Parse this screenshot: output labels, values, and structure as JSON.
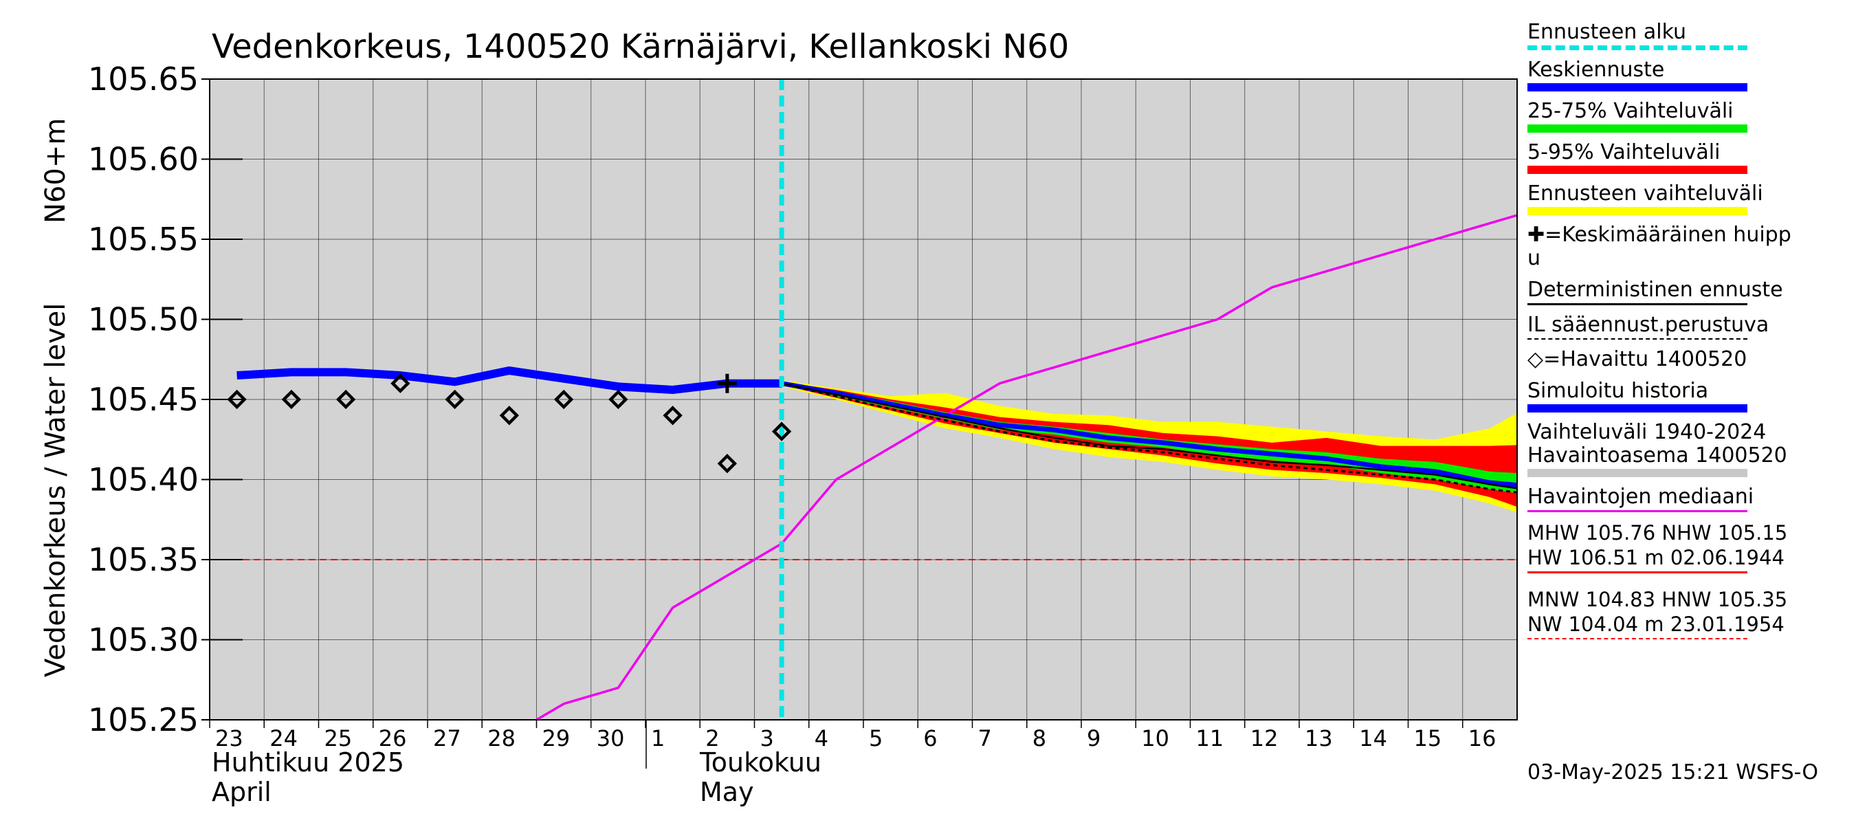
{
  "chart_data": {
    "type": "line",
    "title": "Vedenkorkeus, 1400520 Kärnäjärvi, Kellankoski N60",
    "ylabel_left": "Vedenkorkeus / Water level",
    "ylabel_right": "N60+m",
    "ylim": [
      105.25,
      105.65
    ],
    "y_ticks": [
      "105.25",
      "105.30",
      "105.35",
      "105.40",
      "105.45",
      "105.50",
      "105.55",
      "105.60",
      "105.65"
    ],
    "x_day_labels": [
      "23",
      "24",
      "25",
      "26",
      "27",
      "28",
      "29",
      "30",
      "1",
      "2",
      "3",
      "4",
      "5",
      "6",
      "7",
      "8",
      "9",
      "10",
      "11",
      "12",
      "13",
      "14",
      "15",
      "16"
    ],
    "month_labels": [
      {
        "fi": "Huhtikuu  2025",
        "en": "April"
      },
      {
        "fi": "Toukokuu",
        "en": "May"
      }
    ],
    "forecast_start": "2025-05-03",
    "median_level": 105.35,
    "series": [
      {
        "name": "Simuloitu historia",
        "color": "#0000ff",
        "x": [
          "2025-04-23",
          "2025-04-24",
          "2025-04-25",
          "2025-04-26",
          "2025-04-27",
          "2025-04-28",
          "2025-04-29",
          "2025-04-30",
          "2025-05-01",
          "2025-05-02",
          "2025-05-03"
        ],
        "y": [
          105.465,
          105.467,
          105.467,
          105.465,
          105.461,
          105.468,
          105.463,
          105.458,
          105.456,
          105.46,
          105.46
        ]
      },
      {
        "name": "Havaittu 1400520",
        "color": "#000000",
        "x": [
          "2025-04-23",
          "2025-04-24",
          "2025-04-25",
          "2025-04-26",
          "2025-04-27",
          "2025-04-28",
          "2025-04-29",
          "2025-04-30",
          "2025-05-01",
          "2025-05-02",
          "2025-05-03"
        ],
        "y": [
          105.45,
          105.45,
          105.45,
          105.46,
          105.45,
          105.44,
          105.45,
          105.45,
          105.44,
          105.41,
          105.43
        ]
      },
      {
        "name": "Havaintojen mediaani",
        "color": "#ee00ee",
        "x": [
          "2025-04-28",
          "2025-04-29",
          "2025-04-30",
          "2025-05-01",
          "2025-05-02",
          "2025-05-03",
          "2025-05-04",
          "2025-05-05",
          "2025-05-06",
          "2025-05-07",
          "2025-05-08",
          "2025-05-09",
          "2025-05-10",
          "2025-05-11",
          "2025-05-12",
          "2025-05-13",
          "2025-05-14",
          "2025-05-15",
          "2025-05-16",
          "2025-05-17"
        ],
        "y": [
          105.24,
          105.26,
          105.27,
          105.32,
          105.34,
          105.36,
          105.4,
          105.42,
          105.44,
          105.46,
          105.47,
          105.48,
          105.49,
          105.5,
          105.52,
          105.53,
          105.54,
          105.55,
          105.56,
          105.57
        ]
      },
      {
        "name": "Keskiennuste",
        "color": "#0000ff",
        "x": [
          "2025-05-03",
          "2025-05-04",
          "2025-05-05",
          "2025-05-06",
          "2025-05-07",
          "2025-05-08",
          "2025-05-09",
          "2025-05-10",
          "2025-05-11",
          "2025-05-12",
          "2025-05-13",
          "2025-05-14",
          "2025-05-15",
          "2025-05-16",
          "2025-05-17"
        ],
        "y": [
          105.46,
          105.454,
          105.447,
          105.44,
          105.434,
          105.431,
          105.426,
          105.423,
          105.419,
          105.416,
          105.413,
          105.408,
          105.405,
          105.398,
          105.395
        ]
      },
      {
        "name": "Deterministinen ennuste",
        "color": "#000000",
        "x": [
          "2025-05-03",
          "2025-05-04",
          "2025-05-05",
          "2025-05-06",
          "2025-05-07",
          "2025-05-08",
          "2025-05-09",
          "2025-05-10",
          "2025-05-11",
          "2025-05-12",
          "2025-05-13",
          "2025-05-14",
          "2025-05-15",
          "2025-05-16",
          "2025-05-17"
        ],
        "y": [
          105.46,
          105.453,
          105.446,
          105.439,
          105.432,
          105.426,
          105.421,
          105.419,
          105.415,
          105.411,
          105.409,
          105.406,
          105.403,
          105.397,
          105.392
        ]
      },
      {
        "name": "IL sääennust.perustuva",
        "color": "#000000",
        "x": [
          "2025-05-03",
          "2025-05-04",
          "2025-05-05",
          "2025-05-06",
          "2025-05-07",
          "2025-05-08",
          "2025-05-09",
          "2025-05-10",
          "2025-05-11",
          "2025-05-12",
          "2025-05-13",
          "2025-05-14",
          "2025-05-15",
          "2025-05-16",
          "2025-05-17"
        ],
        "y": [
          105.46,
          105.452,
          105.444,
          105.437,
          105.43,
          105.424,
          105.42,
          105.417,
          105.413,
          105.409,
          105.406,
          105.403,
          105.4,
          105.394,
          105.39
        ]
      }
    ],
    "bands": [
      {
        "name": "Ennusteen vaihteluväli",
        "color": "#ffff00",
        "x": [
          "2025-05-03",
          "2025-05-04",
          "2025-05-05",
          "2025-05-06",
          "2025-05-07",
          "2025-05-08",
          "2025-05-09",
          "2025-05-10",
          "2025-05-11",
          "2025-05-12",
          "2025-05-13",
          "2025-05-14",
          "2025-05-15",
          "2025-05-16",
          "2025-05-17"
        ],
        "upper": [
          105.462,
          105.457,
          105.452,
          105.454,
          105.446,
          105.441,
          105.44,
          105.436,
          105.436,
          105.433,
          105.43,
          105.427,
          105.425,
          105.432,
          105.451
        ],
        "lower": [
          105.458,
          105.45,
          105.441,
          105.432,
          105.426,
          105.419,
          105.414,
          105.411,
          105.406,
          105.402,
          105.4,
          105.397,
          105.393,
          105.385,
          105.374
        ]
      },
      {
        "name": "5-95% Vaihteluväli",
        "color": "#ff0000",
        "x": [
          "2025-05-03",
          "2025-05-04",
          "2025-05-05",
          "2025-05-06",
          "2025-05-07",
          "2025-05-08",
          "2025-05-09",
          "2025-05-10",
          "2025-05-11",
          "2025-05-12",
          "2025-05-13",
          "2025-05-14",
          "2025-05-15",
          "2025-05-16",
          "2025-05-17"
        ],
        "upper": [
          105.461,
          105.456,
          105.45,
          105.445,
          105.439,
          105.436,
          105.434,
          105.429,
          105.427,
          105.423,
          105.426,
          105.421,
          105.421,
          105.421,
          105.422
        ],
        "lower": [
          105.459,
          105.451,
          105.443,
          105.435,
          105.429,
          105.423,
          105.419,
          105.415,
          105.41,
          105.406,
          105.404,
          105.401,
          105.397,
          105.389,
          105.377
        ]
      },
      {
        "name": "25-75% Vaihteluväli",
        "color": "#00ee00",
        "x": [
          "2025-05-03",
          "2025-05-04",
          "2025-05-05",
          "2025-05-06",
          "2025-05-07",
          "2025-05-08",
          "2025-05-09",
          "2025-05-10",
          "2025-05-11",
          "2025-05-12",
          "2025-05-13",
          "2025-05-14",
          "2025-05-15",
          "2025-05-16",
          "2025-05-17"
        ],
        "upper": [
          105.46,
          105.455,
          105.449,
          105.442,
          105.436,
          105.433,
          105.429,
          105.425,
          105.422,
          105.419,
          105.417,
          105.413,
          105.411,
          105.405,
          105.403
        ],
        "lower": [
          105.46,
          105.452,
          105.445,
          105.438,
          105.431,
          105.428,
          105.423,
          105.42,
          105.415,
          105.412,
          105.409,
          105.404,
          105.4,
          105.394,
          105.389
        ]
      }
    ],
    "peak_marker": {
      "name": "Keskimääräinen huippu",
      "x": "2025-05-02",
      "y": 105.46
    }
  },
  "legend": {
    "items": [
      {
        "label": "Ennusteen alku",
        "color": "#00e5e5",
        "style": "dashed"
      },
      {
        "label": "Keskiennuste",
        "color": "#0000ff",
        "style": "thick"
      },
      {
        "label": "25-75% Vaihteluväli",
        "color": "#00ee00",
        "style": "thick"
      },
      {
        "label": "5-95% Vaihteluväli",
        "color": "#ff0000",
        "style": "thick"
      },
      {
        "label": "Ennusteen vaihteluväli",
        "color": "#ffff00",
        "style": "thick"
      },
      {
        "label": "✚=Keskimääräinen huipp\nu",
        "color": "",
        "style": "none"
      },
      {
        "label": "Deterministinen ennuste",
        "color": "#000000",
        "style": "thin"
      },
      {
        "label": "IL sääennust.perustuva",
        "color": "#000000",
        "style": "dashed-thin"
      },
      {
        "label": "◇=Havaittu 1400520",
        "color": "",
        "style": "none"
      },
      {
        "label": "Simuloitu historia",
        "color": "#0000ff",
        "style": "thick"
      },
      {
        "label": "Vaihteluväli 1940-2024\n Havaintoasema 1400520",
        "color": "#c8c8c8",
        "style": "thick"
      },
      {
        "label": "Havaintojen mediaani",
        "color": "#ee00ee",
        "style": "thin"
      }
    ],
    "stats_high": {
      "line1": "MHW 105.76 NHW 105.15",
      "line2": "HW 106.51 m 02.06.1944",
      "color": "#ff0000"
    },
    "stats_low": {
      "line1": "MNW 104.83 HNW 105.35",
      "line2": "NW 104.04 m 23.01.1954",
      "color": "#ff0000"
    }
  },
  "footer": "03-May-2025 15:21 WSFS-O"
}
